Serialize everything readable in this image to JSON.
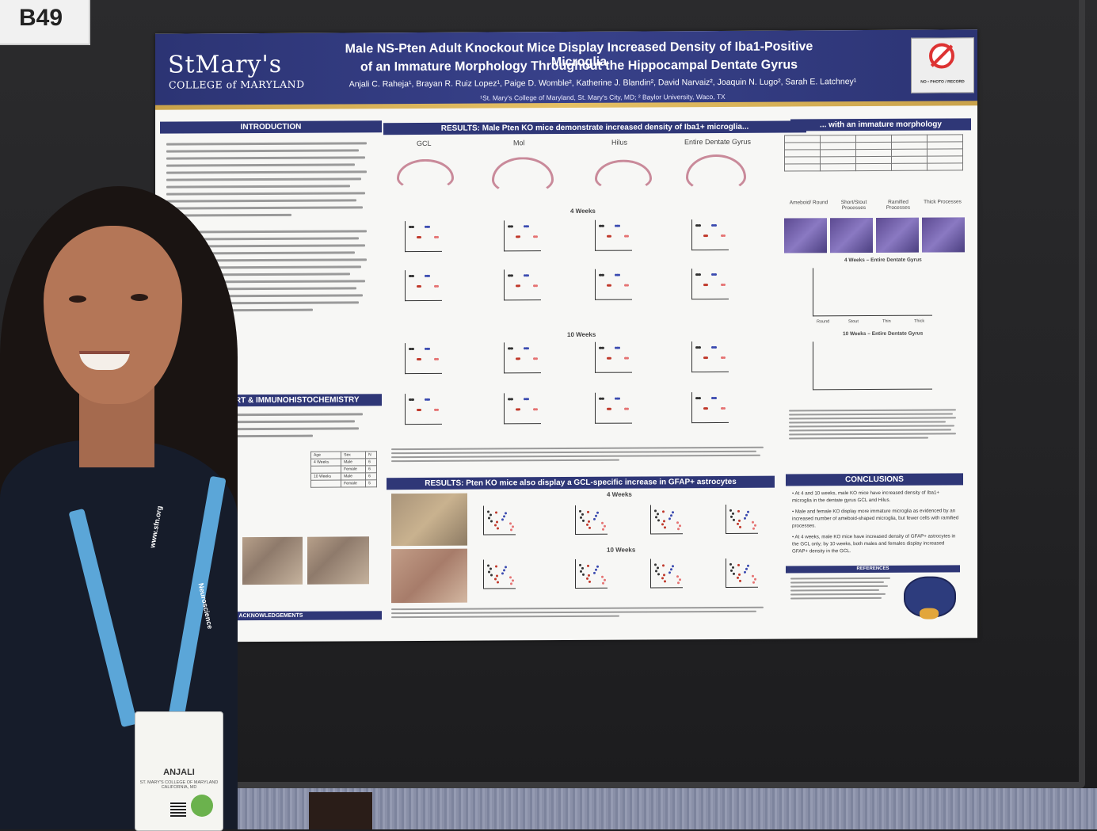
{
  "booth": {
    "label": "B49"
  },
  "poster": {
    "logo": {
      "main": "StMary's",
      "sub": "COLLEGE of MARYLAND"
    },
    "title_line1": "Male NS-Pten Adult Knockout Mice Display Increased Density of Iba1-Positive Microglia",
    "title_line2": "of an Immature Morphology Throughout the Hippocampal Dentate Gyrus",
    "authors": "Anjali C. Raheja¹, Brayan R. Ruiz Lopez¹, Paige D. Womble², Katherine J. Blandin², David Narvaiz², Joaquin N. Lugo², Sarah E. Latchney¹",
    "affiliations": "¹St. Mary's College of Maryland, St. Mary's City, MD; ² Baylor University, Waco, TX",
    "no_photo": "NO • PHOTO / RECORD",
    "sections": {
      "introduction": "INTRODUCTION",
      "cohort": "STUDY COHORT & IMMUNOHISTOCHEMISTRY",
      "acknowledgements": "ACKNOWLEDGEMENTS",
      "results1": "RESULTS: Male Pten KO mice demonstrate increased density of Iba1+ microglia...",
      "results1b": "... with an immature morphology",
      "results2": "RESULTS: Pten KO mice also display a GCL-specific increase in GFAP+ astrocytes",
      "conclusions": "CONCLUSIONS",
      "references": "REFERENCES"
    },
    "regions": [
      "GCL",
      "Mol",
      "Hilus",
      "Entire Dentate Gyrus"
    ],
    "timepoints": {
      "t4": "4 Weeks",
      "t10": "10 Weeks"
    },
    "morph_labels": [
      "Ameboid/ Round",
      "Short/Stout Processes",
      "Ramified Processes",
      "Thick Processes"
    ],
    "morph_charts": {
      "f": "4 Weeks – Entire Dentate Gyrus",
      "g": "10 Weeks – Entire Dentate Gyrus"
    },
    "morph_x": [
      "Round",
      "Stout",
      "Thin",
      "Thick"
    ],
    "cohort_table": {
      "headers": [
        "Age",
        "Sex",
        "N"
      ],
      "rows": [
        [
          "4 Weeks",
          "Male",
          "6"
        ],
        [
          "",
          "Female",
          "6"
        ],
        [
          "10 Weeks",
          "Male",
          "6"
        ],
        [
          "",
          "Female",
          "5"
        ]
      ]
    },
    "conclusions": [
      "At 4 and 10 weeks, male KO mice have increased density of Iba1+ microglia in the dentate gyrus GCL and Hilus.",
      "Male and female KO display more immature microglia as evidenced by an increased number of ameboid-shaped microglia, but fewer cells with ramified processes.",
      "At 4 weeks, male KO mice have increased density of GFAP+ astrocytes in the GCL only; by 10 weeks, both males and females display increased GFAP+ density in the GCL."
    ]
  },
  "badge": {
    "name": "ANJALI",
    "org": "ST. MARY'S COLLEGE OF MARYLAND CALIFORNIA, MD"
  },
  "lanyard": {
    "left_text": "www.sfn.org",
    "right_text": "Neuroscience"
  }
}
